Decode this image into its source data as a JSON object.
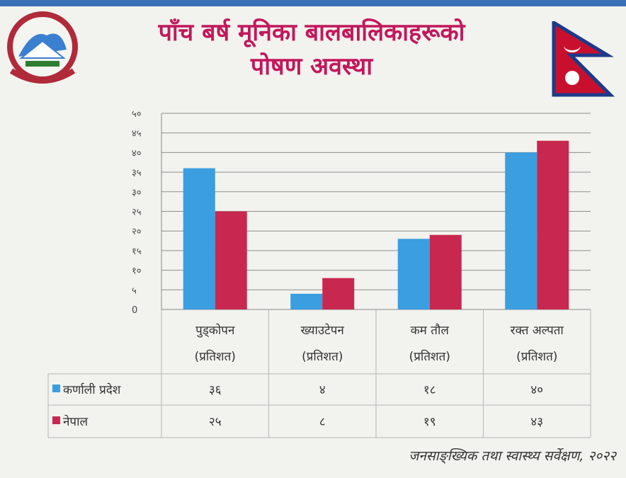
{
  "header": {
    "title_line1": "पाँच बर्ष मूनिका बालबालिकाहरूको",
    "title_line2": "पोषण अवस्था"
  },
  "icons": {
    "emblem": "nepal-emblem-icon",
    "flag": "nepal-flag-icon"
  },
  "colors": {
    "karnali": "#3a9ee0",
    "nepal": "#c8284f",
    "title": "#c2185b"
  },
  "chart_data": {
    "type": "bar",
    "ylim": [
      0,
      50
    ],
    "ytick_labels": [
      "0",
      "५",
      "१०",
      "१५",
      "२०",
      "२५",
      "३०",
      "३५",
      "४०",
      "४५",
      "५०"
    ],
    "categories": [
      {
        "line1": "पुड्कोपन",
        "line2": "(प्रतिशत)"
      },
      {
        "line1": "ख्याउटेपन",
        "line2": "(प्रतिशत)"
      },
      {
        "line1": "कम तौल",
        "line2": "(प्रतिशत)"
      },
      {
        "line1": "रक्त अल्पता",
        "line2": "(प्रतिशत)"
      }
    ],
    "series": [
      {
        "name": "कर्णाली प्रदेश",
        "values": [
          36,
          4,
          18,
          40
        ],
        "labels": [
          "३६",
          "४",
          "१८",
          "४०"
        ]
      },
      {
        "name": "नेपाल",
        "values": [
          25,
          8,
          19,
          43
        ],
        "labels": [
          "२५",
          "८",
          "१९",
          "४३"
        ]
      }
    ],
    "grid": true,
    "legend": "data-table"
  },
  "source": "जनसाङ्ख्यिक तथा स्वास्थ्य सर्वेक्षण, २०२२"
}
